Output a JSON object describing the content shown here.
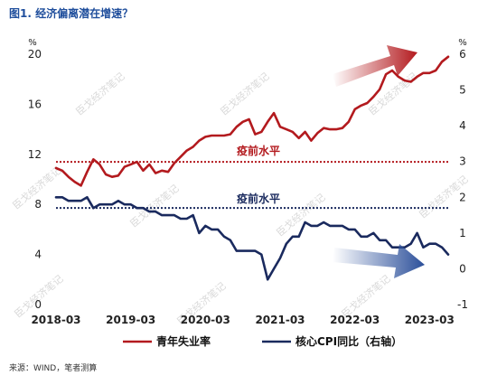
{
  "figure_title": "图1. 经济偏离潜在增速？",
  "source_note": "来源：WIND，笔者测算",
  "watermark": "臣戈经济笔记",
  "colors": {
    "youth_unemployment": "#b31a1e",
    "core_cpi": "#1a2a5e",
    "pre_covid_red": "#b31a1e",
    "pre_covid_blue": "#1a2a5e",
    "title_blue": "#1f4e9c"
  },
  "chart_data": {
    "type": "line",
    "left_axis": {
      "unit": "%",
      "ticks": [
        "20",
        "16",
        "12",
        "8",
        "4",
        "0"
      ],
      "ylim": [
        0,
        20
      ]
    },
    "right_axis": {
      "unit": "%",
      "ticks": [
        "6",
        "5",
        "4",
        "3",
        "2",
        "1",
        "0",
        "-1"
      ],
      "ylim": [
        -1,
        6
      ]
    },
    "x_ticks": [
      "2018-03",
      "2019-03",
      "2020-03",
      "2021-03",
      "2022-03",
      "2023-03"
    ],
    "annotations": [
      {
        "text": "疫前水平",
        "axis": "left",
        "value": 11.4
      },
      {
        "text": "疫前水平",
        "axis": "right",
        "value": 1.7
      }
    ],
    "series": [
      {
        "name": "青年失业率",
        "axis": "left",
        "x": [
          "2018-03",
          "2018-04",
          "2018-05",
          "2018-06",
          "2018-07",
          "2018-08",
          "2018-09",
          "2018-10",
          "2018-11",
          "2018-12",
          "2019-01",
          "2019-02",
          "2019-03",
          "2019-04",
          "2019-05",
          "2019-06",
          "2019-07",
          "2019-08",
          "2019-09",
          "2019-10",
          "2019-11",
          "2019-12",
          "2020-01",
          "2020-02",
          "2020-03",
          "2020-04",
          "2020-05",
          "2020-06",
          "2020-07",
          "2020-08",
          "2020-09",
          "2020-10",
          "2020-11",
          "2020-12",
          "2021-01",
          "2021-02",
          "2021-03",
          "2021-04",
          "2021-05",
          "2021-06",
          "2021-07",
          "2021-08",
          "2021-09",
          "2021-10",
          "2021-11",
          "2021-12",
          "2022-01",
          "2022-02",
          "2022-03",
          "2022-04",
          "2022-05",
          "2022-06",
          "2022-07",
          "2022-08",
          "2022-09",
          "2022-10",
          "2022-11",
          "2022-12",
          "2023-01",
          "2023-02",
          "2023-03",
          "2023-04",
          "2023-05",
          "2023-06"
        ],
        "values": [
          10.9,
          10.7,
          10.2,
          9.8,
          9.5,
          10.6,
          11.6,
          11.2,
          10.4,
          10.2,
          10.3,
          11.0,
          11.2,
          11.4,
          10.7,
          11.2,
          10.5,
          10.7,
          10.6,
          11.3,
          11.8,
          12.3,
          12.6,
          13.1,
          13.4,
          13.5,
          13.5,
          13.5,
          13.6,
          14.2,
          14.6,
          14.8,
          13.6,
          13.8,
          14.6,
          15.3,
          14.2,
          14.0,
          13.8,
          13.3,
          13.8,
          13.1,
          13.7,
          14.1,
          14.0,
          14.0,
          14.1,
          14.6,
          15.6,
          15.9,
          16.1,
          16.6,
          17.2,
          18.4,
          18.7,
          18.2,
          17.9,
          17.8,
          18.2,
          18.5,
          18.5,
          18.7,
          19.4,
          19.8
        ]
      },
      {
        "name": "核心CPI同比（右轴）",
        "axis": "right",
        "x": [
          "2018-03",
          "2018-04",
          "2018-05",
          "2018-06",
          "2018-07",
          "2018-08",
          "2018-09",
          "2018-10",
          "2018-11",
          "2018-12",
          "2019-01",
          "2019-02",
          "2019-03",
          "2019-04",
          "2019-05",
          "2019-06",
          "2019-07",
          "2019-08",
          "2019-09",
          "2019-10",
          "2019-11",
          "2019-12",
          "2020-01",
          "2020-02",
          "2020-03",
          "2020-04",
          "2020-05",
          "2020-06",
          "2020-07",
          "2020-08",
          "2020-09",
          "2020-10",
          "2020-11",
          "2020-12",
          "2021-01",
          "2021-02",
          "2021-03",
          "2021-04",
          "2021-05",
          "2021-06",
          "2021-07",
          "2021-08",
          "2021-09",
          "2021-10",
          "2021-11",
          "2021-12",
          "2022-01",
          "2022-02",
          "2022-03",
          "2022-04",
          "2022-05",
          "2022-06",
          "2022-07",
          "2022-08",
          "2022-09",
          "2022-10",
          "2022-11",
          "2022-12",
          "2023-01",
          "2023-02",
          "2023-03",
          "2023-04",
          "2023-05",
          "2023-06"
        ],
        "values": [
          2.0,
          2.0,
          1.9,
          1.9,
          1.9,
          2.0,
          1.7,
          1.8,
          1.8,
          1.8,
          1.9,
          1.8,
          1.8,
          1.7,
          1.7,
          1.6,
          1.6,
          1.5,
          1.5,
          1.5,
          1.4,
          1.4,
          1.5,
          1.0,
          1.2,
          1.1,
          1.1,
          0.9,
          0.8,
          0.5,
          0.5,
          0.5,
          0.5,
          0.4,
          -0.3,
          0.0,
          0.3,
          0.7,
          0.9,
          0.9,
          1.3,
          1.2,
          1.2,
          1.3,
          1.2,
          1.2,
          1.2,
          1.1,
          1.1,
          0.9,
          0.9,
          1.0,
          0.8,
          0.8,
          0.6,
          0.6,
          0.6,
          0.7,
          1.0,
          0.6,
          0.7,
          0.7,
          0.6,
          0.4
        ]
      }
    ]
  }
}
